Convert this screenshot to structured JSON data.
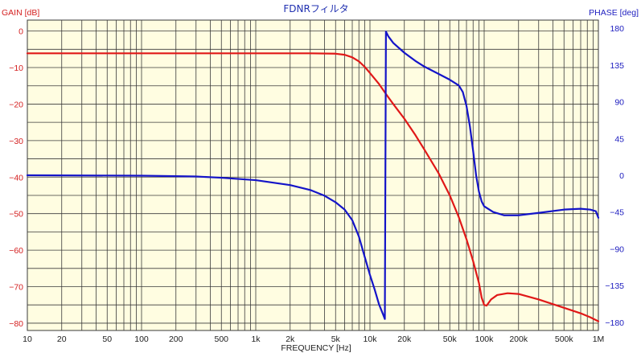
{
  "chart_data": {
    "type": "line",
    "title": "FDNRフィルタ",
    "xlabel": "FREQUENCY [Hz]",
    "ylabel_left": "GAIN [dB]",
    "ylabel_right": "PHASE [deg]",
    "x_scale": "log",
    "xlim": [
      10,
      1000000
    ],
    "ylim_left": [
      -82,
      3
    ],
    "ylim_right": [
      -190,
      190
    ],
    "x_ticks": [
      {
        "value": 10,
        "label": "10"
      },
      {
        "value": 20,
        "label": "20"
      },
      {
        "value": 50,
        "label": "50"
      },
      {
        "value": 100,
        "label": "100"
      },
      {
        "value": 200,
        "label": "200"
      },
      {
        "value": 500,
        "label": "500"
      },
      {
        "value": 1000,
        "label": "1k"
      },
      {
        "value": 2000,
        "label": "2k"
      },
      {
        "value": 5000,
        "label": "5k"
      },
      {
        "value": 10000,
        "label": "10k"
      },
      {
        "value": 20000,
        "label": "20k"
      },
      {
        "value": 50000,
        "label": "50k"
      },
      {
        "value": 100000,
        "label": "100k"
      },
      {
        "value": 200000,
        "label": "200k"
      },
      {
        "value": 500000,
        "label": "500k"
      },
      {
        "value": 1000000,
        "label": "1M"
      }
    ],
    "y_ticks_left": [
      0,
      -10,
      -20,
      -30,
      -40,
      -50,
      -60,
      -70,
      -80
    ],
    "y_ticks_right": [
      180,
      135,
      90,
      45,
      0,
      -45,
      -90,
      -135,
      -180
    ],
    "grid": true,
    "colors": {
      "background": "#fffde1",
      "grid": "#3a3a3a",
      "gain": "#e01818",
      "phase": "#1414c8",
      "left_axis_text": "#d42020",
      "right_axis_text": "#2020c0",
      "title_text": "#2030b0",
      "bottom_axis_text": "#202020"
    },
    "series": [
      {
        "axis": "left",
        "color": "#e01818",
        "points": [
          [
            10,
            -6.1
          ],
          [
            100,
            -6.1
          ],
          [
            1000,
            -6.1
          ],
          [
            3000,
            -6.1
          ],
          [
            5000,
            -6.2
          ],
          [
            6000,
            -6.5
          ],
          [
            7000,
            -7.2
          ],
          [
            8000,
            -8.3
          ],
          [
            9000,
            -9.8
          ],
          [
            10000,
            -11.5
          ],
          [
            12000,
            -14.5
          ],
          [
            14000,
            -17.5
          ],
          [
            16000,
            -20
          ],
          [
            20000,
            -24
          ],
          [
            25000,
            -28.5
          ],
          [
            30000,
            -32.5
          ],
          [
            40000,
            -39
          ],
          [
            50000,
            -45
          ],
          [
            60000,
            -51
          ],
          [
            70000,
            -57
          ],
          [
            80000,
            -63
          ],
          [
            90000,
            -69
          ],
          [
            95000,
            -73
          ],
          [
            100000,
            -75
          ],
          [
            105000,
            -75.2
          ],
          [
            115000,
            -73.5
          ],
          [
            130000,
            -72.3
          ],
          [
            160000,
            -71.8
          ],
          [
            200000,
            -72
          ],
          [
            300000,
            -73.5
          ],
          [
            500000,
            -75.8
          ],
          [
            700000,
            -77.3
          ],
          [
            850000,
            -78.4
          ],
          [
            1000000,
            -79.5
          ]
        ]
      },
      {
        "axis": "right",
        "color": "#1414c8",
        "points": [
          [
            10,
            0
          ],
          [
            100,
            -0.5
          ],
          [
            300,
            -1.5
          ],
          [
            500,
            -3
          ],
          [
            1000,
            -6
          ],
          [
            2000,
            -12
          ],
          [
            3000,
            -18
          ],
          [
            4000,
            -25
          ],
          [
            5000,
            -33
          ],
          [
            6000,
            -42
          ],
          [
            7000,
            -55
          ],
          [
            8000,
            -75
          ],
          [
            9000,
            -100
          ],
          [
            10000,
            -122
          ],
          [
            11000,
            -140
          ],
          [
            12000,
            -158
          ],
          [
            13000,
            -170
          ],
          [
            13500,
            -176
          ],
          [
            13800,
            176
          ],
          [
            14500,
            170
          ],
          [
            16000,
            162
          ],
          [
            20000,
            150
          ],
          [
            25000,
            140
          ],
          [
            30000,
            133
          ],
          [
            40000,
            124
          ],
          [
            50000,
            117
          ],
          [
            60000,
            110
          ],
          [
            65000,
            102
          ],
          [
            70000,
            85
          ],
          [
            75000,
            60
          ],
          [
            80000,
            30
          ],
          [
            85000,
            0
          ],
          [
            90000,
            -20
          ],
          [
            95000,
            -32
          ],
          [
            100000,
            -38
          ],
          [
            120000,
            -45
          ],
          [
            150000,
            -49
          ],
          [
            200000,
            -49
          ],
          [
            300000,
            -46
          ],
          [
            500000,
            -42
          ],
          [
            700000,
            -41
          ],
          [
            850000,
            -42
          ],
          [
            950000,
            -44
          ],
          [
            1000000,
            -52
          ]
        ]
      }
    ]
  }
}
